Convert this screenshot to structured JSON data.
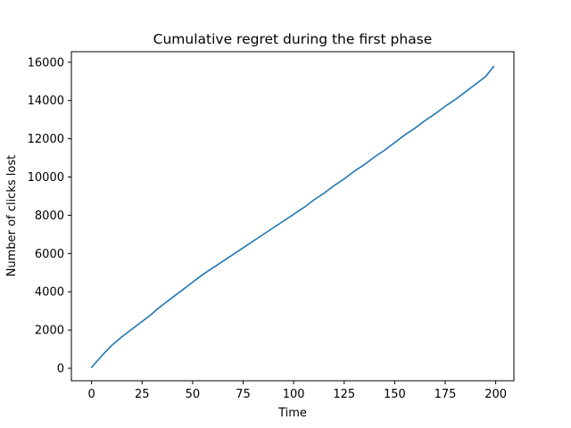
{
  "chart_data": {
    "type": "line",
    "title": "Cumulative regret during the first phase",
    "xlabel": "Time",
    "ylabel": "Number of clicks lost",
    "xlim": [
      -10,
      209
    ],
    "ylim": [
      -650,
      16550
    ],
    "x_ticks": [
      0,
      25,
      50,
      75,
      100,
      125,
      150,
      175,
      200
    ],
    "y_ticks": [
      0,
      2000,
      4000,
      6000,
      8000,
      10000,
      12000,
      14000,
      16000
    ],
    "grid": false,
    "line_color": "#1f77b4",
    "series": [
      {
        "x": [
          0,
          5,
          10,
          15,
          20,
          25,
          30,
          32,
          35,
          40,
          45,
          50,
          55,
          60,
          65,
          70,
          75,
          80,
          85,
          90,
          95,
          100,
          105,
          110,
          115,
          120,
          125,
          130,
          135,
          140,
          145,
          150,
          155,
          160,
          165,
          170,
          175,
          180,
          185,
          190,
          195,
          199
        ],
        "y": [
          50,
          650,
          1200,
          1650,
          2050,
          2450,
          2850,
          3050,
          3300,
          3700,
          4100,
          4500,
          4900,
          5250,
          5600,
          5950,
          6300,
          6650,
          7000,
          7350,
          7700,
          8050,
          8400,
          8800,
          9150,
          9550,
          9900,
          10300,
          10650,
          11050,
          11400,
          11800,
          12200,
          12550,
          12950,
          13300,
          13700,
          14050,
          14450,
          14850,
          15250,
          15780
        ]
      }
    ]
  }
}
